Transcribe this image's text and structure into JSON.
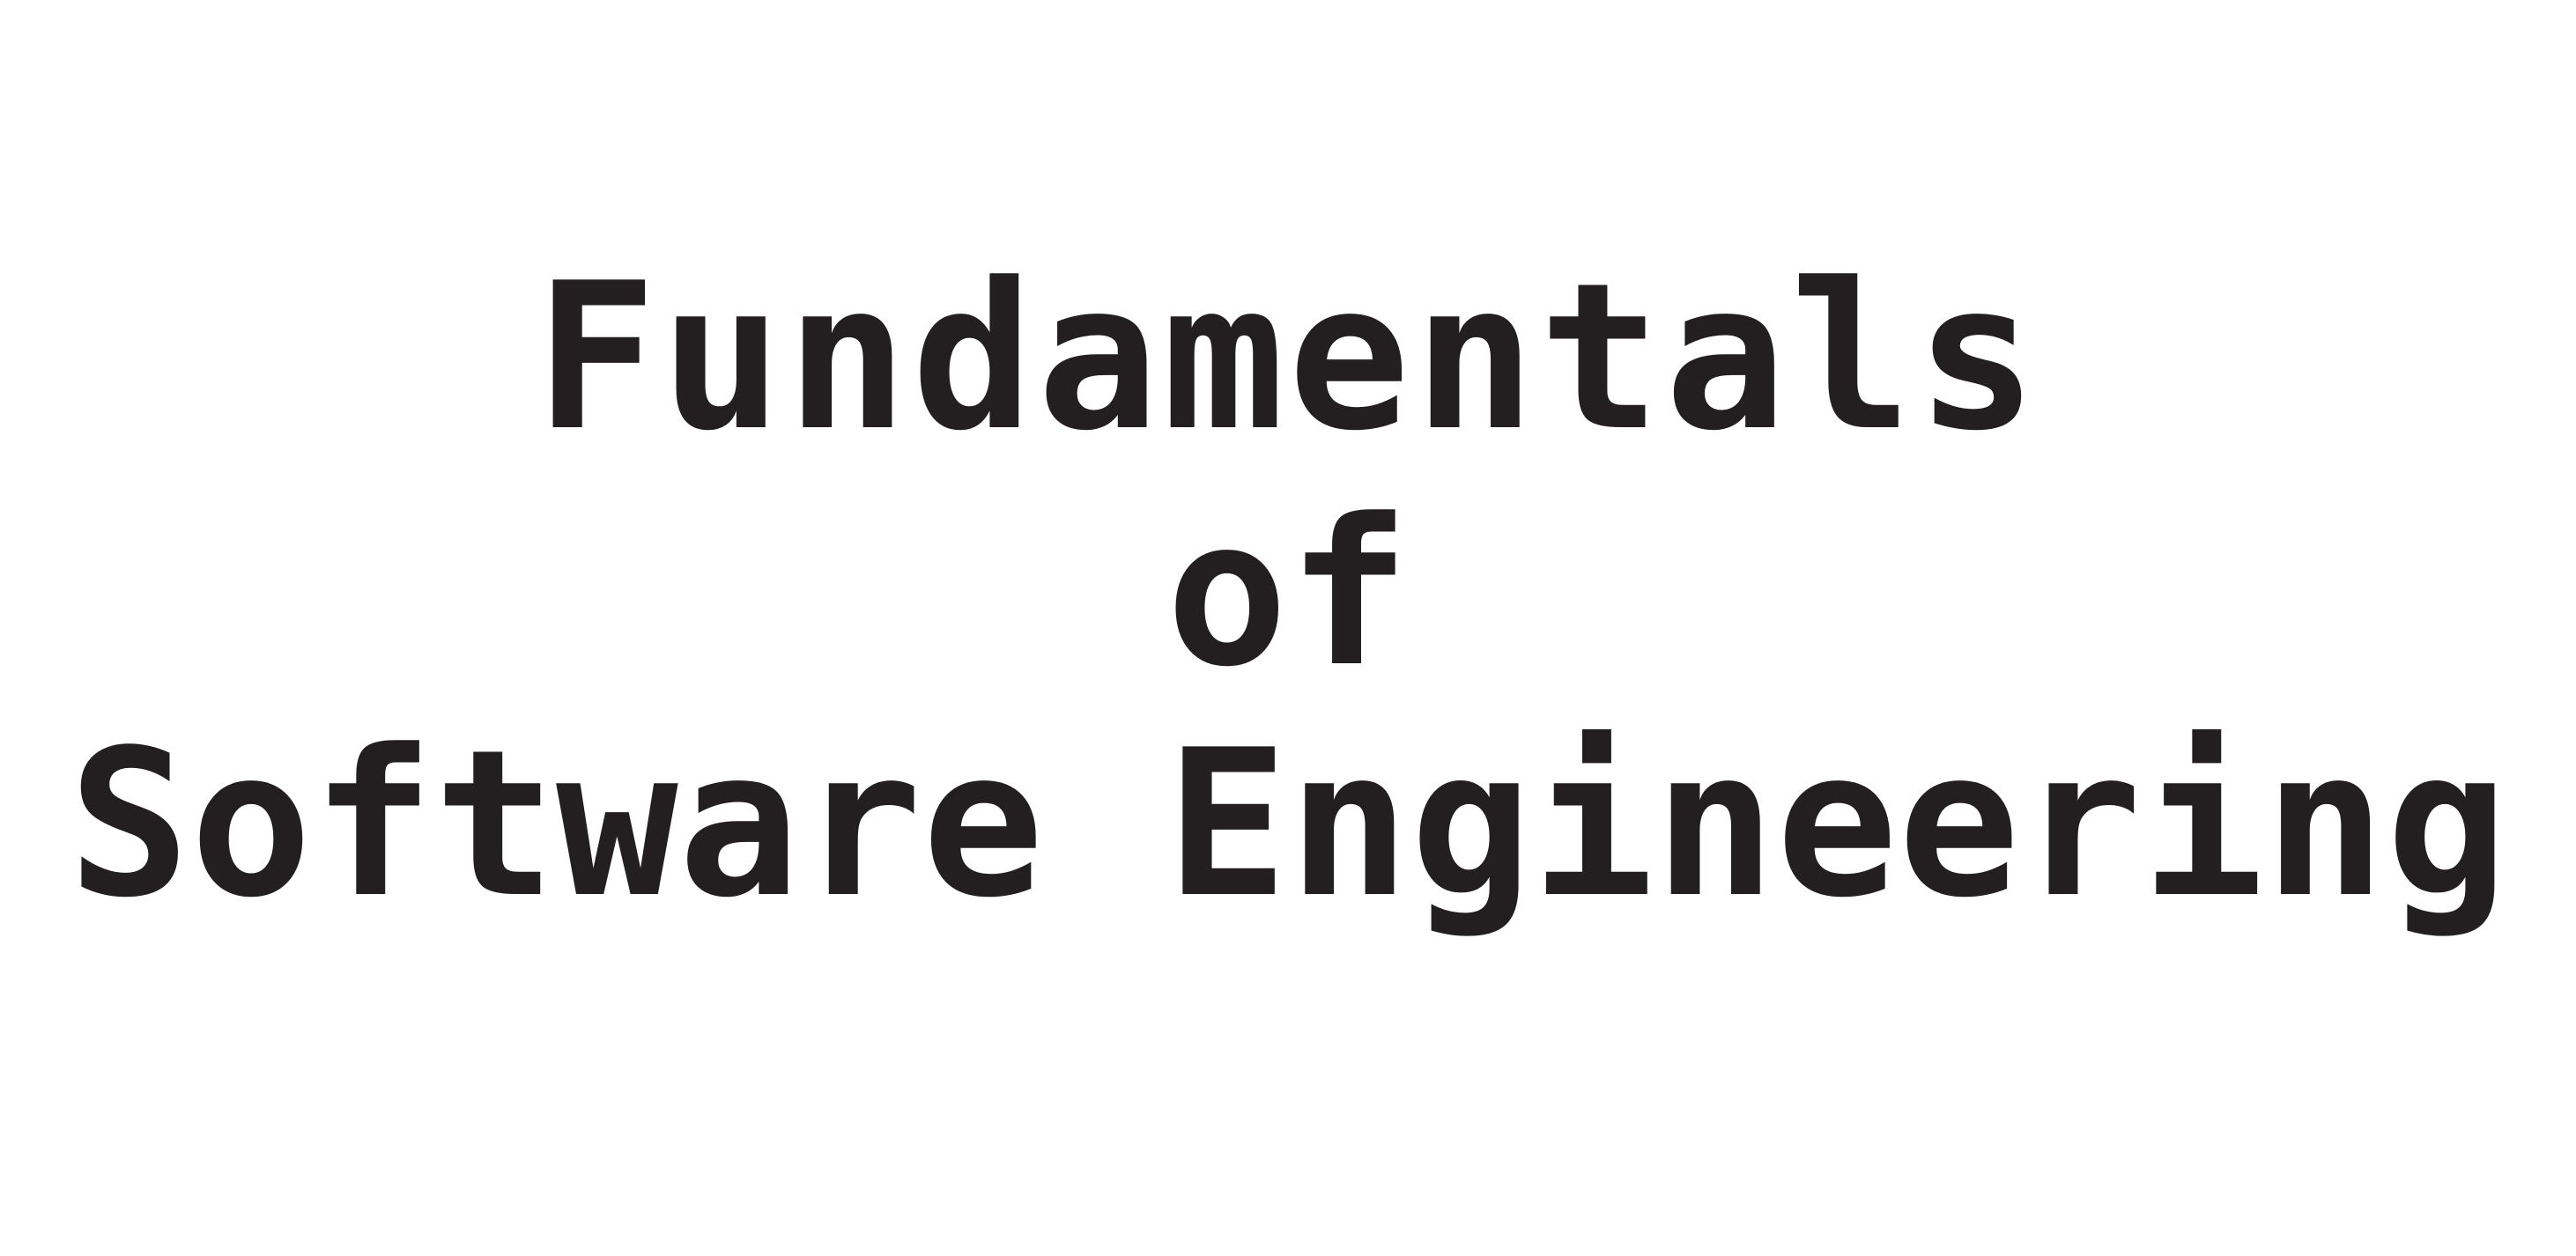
{
  "title": {
    "line1": "Fundamentals",
    "line2": "of",
    "line3": "Software Engineering"
  },
  "colors": {
    "background": "#ffffff",
    "text": "#231f20"
  }
}
